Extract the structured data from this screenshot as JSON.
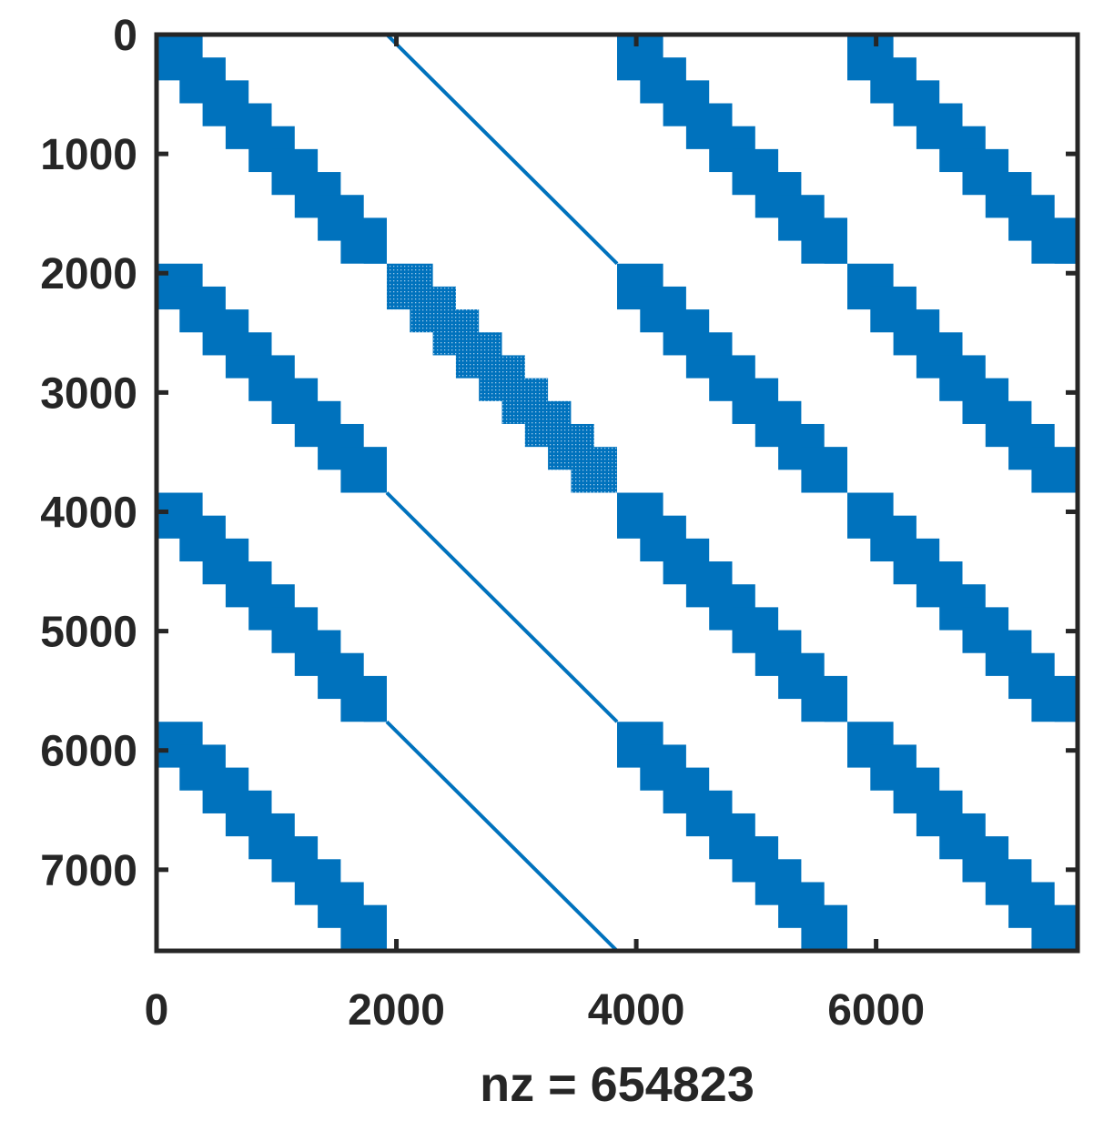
{
  "chart_data": {
    "type": "spy",
    "description_text": "",
    "xlabel": "nz = 654823",
    "ylabel": "",
    "title": "",
    "matrix_size": 7680,
    "block_size": 1920,
    "nonzero_count": 654823,
    "xlim": [
      0,
      7680
    ],
    "ylim": [
      7680,
      0
    ],
    "y_reversed": true,
    "x_ticks": [
      0,
      2000,
      4000,
      6000
    ],
    "x_tick_labels": [
      "0",
      "2000",
      "4000",
      "6000"
    ],
    "y_ticks": [
      0,
      1000,
      2000,
      3000,
      4000,
      5000,
      6000,
      7000
    ],
    "y_tick_labels": [
      "0",
      "1000",
      "2000",
      "3000",
      "4000",
      "5000",
      "6000",
      "7000"
    ],
    "grid": false,
    "marker_color": "#0072BD",
    "axis_color": "#262626",
    "staircase": {
      "steps": 10,
      "band_width": 384
    },
    "blocks": [
      {
        "row": 0,
        "col": 0,
        "kind": "band"
      },
      {
        "row": 0,
        "col": 1,
        "kind": "line"
      },
      {
        "row": 0,
        "col": 2,
        "kind": "band"
      },
      {
        "row": 0,
        "col": 3,
        "kind": "band"
      },
      {
        "row": 1,
        "col": 0,
        "kind": "band"
      },
      {
        "row": 1,
        "col": 1,
        "kind": "sparse-band"
      },
      {
        "row": 1,
        "col": 2,
        "kind": "band"
      },
      {
        "row": 1,
        "col": 3,
        "kind": "band"
      },
      {
        "row": 2,
        "col": 0,
        "kind": "band"
      },
      {
        "row": 2,
        "col": 1,
        "kind": "line"
      },
      {
        "row": 2,
        "col": 2,
        "kind": "band"
      },
      {
        "row": 2,
        "col": 3,
        "kind": "band"
      },
      {
        "row": 3,
        "col": 0,
        "kind": "band"
      },
      {
        "row": 3,
        "col": 1,
        "kind": "line"
      },
      {
        "row": 3,
        "col": 2,
        "kind": "band"
      },
      {
        "row": 3,
        "col": 3,
        "kind": "band"
      }
    ]
  }
}
